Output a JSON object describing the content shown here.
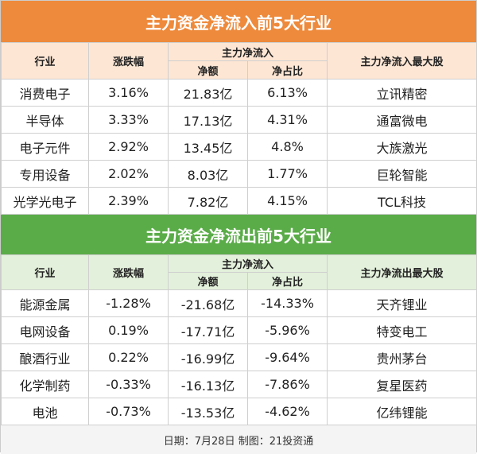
{
  "sections": [
    {
      "title": "主力资金净流入前5大行业",
      "headers": {
        "industry": "行业",
        "change": "涨跌幅",
        "flow": "主力净流入",
        "amount": "净额",
        "ratio": "净占比",
        "stock": "主力净流入最大股"
      },
      "rows": [
        [
          "消费电子",
          "3.16%",
          "21.83亿",
          "6.13%",
          "立讯精密"
        ],
        [
          "半导体",
          "3.33%",
          "17.13亿",
          "4.31%",
          "通富微电"
        ],
        [
          "电子元件",
          "2.92%",
          "13.45亿",
          "4.8%",
          "大族激光"
        ],
        [
          "专用设备",
          "2.02%",
          "8.03亿",
          "1.77%",
          "巨轮智能"
        ],
        [
          "光学光电子",
          "2.39%",
          "7.82亿",
          "4.15%",
          "TCL科技"
        ]
      ]
    },
    {
      "title": "主力资金净流出前5大行业",
      "headers": {
        "industry": "行业",
        "change": "涨跌幅",
        "flow": "主力净流入",
        "amount": "净额",
        "ratio": "净占比",
        "stock": "主力净流出最大股"
      },
      "rows": [
        [
          "能源金属",
          "-1.28%",
          "-21.68亿",
          "-14.33%",
          "天齐锂业"
        ],
        [
          "电网设备",
          "0.19%",
          "-17.71亿",
          "-5.96%",
          "特变电工"
        ],
        [
          "酿酒行业",
          "0.22%",
          "-16.99亿",
          "-9.64%",
          "贵州茅台"
        ],
        [
          "化学制药",
          "-0.33%",
          "-16.13亿",
          "-7.86%",
          "复星医药"
        ],
        [
          "电池",
          "-0.73%",
          "-13.53亿",
          "-4.62%",
          "亿纬锂能"
        ]
      ]
    }
  ],
  "footer": "日期：7月28日 制图：21投资通"
}
